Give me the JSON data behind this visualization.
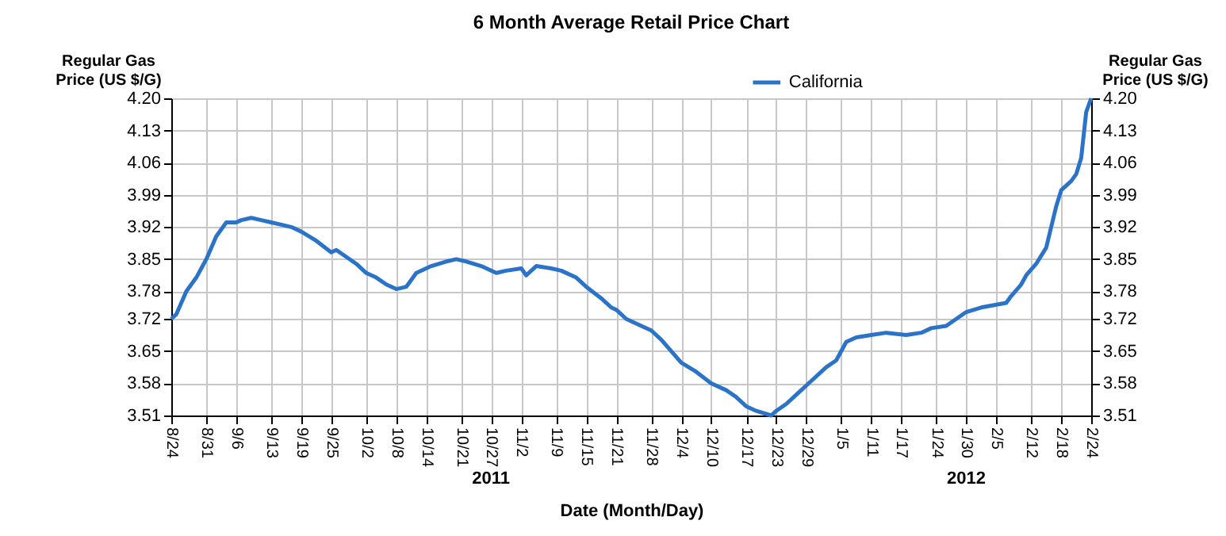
{
  "chart_data": {
    "type": "line",
    "title": "6 Month Average Retail Price Chart",
    "xlabel": "Date (Month/Day)",
    "ylabel": "Regular Gas Price (US $/G)",
    "y2label": "Regular Gas Price (US $/G)",
    "x": [
      "2011-08-24",
      "2011-08-25",
      "2011-08-27",
      "2011-08-29",
      "2011-08-31",
      "2011-09-02",
      "2011-09-04",
      "2011-09-06",
      "2011-09-07",
      "2011-09-09",
      "2011-09-11",
      "2011-09-13",
      "2011-09-15",
      "2011-09-17",
      "2011-09-19",
      "2011-09-22",
      "2011-09-25",
      "2011-09-26",
      "2011-09-28",
      "2011-09-30",
      "2011-10-02",
      "2011-10-04",
      "2011-10-06",
      "2011-10-08",
      "2011-10-10",
      "2011-10-11",
      "2011-10-12",
      "2011-10-15",
      "2011-10-18",
      "2011-10-20",
      "2011-10-22",
      "2011-10-25",
      "2011-10-28",
      "2011-10-30",
      "2011-11-02",
      "2011-11-03",
      "2011-11-05",
      "2011-11-08",
      "2011-11-10",
      "2011-11-13",
      "2011-11-15",
      "2011-11-18",
      "2011-11-20",
      "2011-11-21",
      "2011-11-23",
      "2011-11-26",
      "2011-11-28",
      "2011-11-30",
      "2011-12-02",
      "2011-12-04",
      "2011-12-07",
      "2011-12-10",
      "2011-12-13",
      "2011-12-15",
      "2011-12-17",
      "2011-12-19",
      "2011-12-22",
      "2011-12-23",
      "2011-12-25",
      "2011-12-27",
      "2011-12-30",
      "2012-01-02",
      "2012-01-04",
      "2012-01-06",
      "2012-01-08",
      "2012-01-11",
      "2012-01-14",
      "2012-01-18",
      "2012-01-21",
      "2012-01-23",
      "2012-01-26",
      "2012-01-28",
      "2012-01-30",
      "2012-02-02",
      "2012-02-07",
      "2012-02-08",
      "2012-02-10",
      "2012-02-11",
      "2012-02-13",
      "2012-02-15",
      "2012-02-17",
      "2012-02-18",
      "2012-02-20",
      "2012-02-21",
      "2012-02-22",
      "2012-02-23",
      "2012-02-24"
    ],
    "series": [
      {
        "name": "California",
        "color": "#2a73c8",
        "values": [
          3.72,
          3.73,
          3.78,
          3.81,
          3.85,
          3.9,
          3.93,
          3.93,
          3.935,
          3.94,
          3.935,
          3.93,
          3.925,
          3.92,
          3.91,
          3.89,
          3.865,
          3.87,
          3.855,
          3.84,
          3.82,
          3.81,
          3.795,
          3.785,
          3.79,
          3.805,
          3.82,
          3.835,
          3.845,
          3.85,
          3.845,
          3.835,
          3.82,
          3.825,
          3.83,
          3.815,
          3.835,
          3.83,
          3.825,
          3.81,
          3.79,
          3.765,
          3.745,
          3.74,
          3.72,
          3.705,
          3.695,
          3.675,
          3.65,
          3.625,
          3.605,
          3.58,
          3.565,
          3.55,
          3.53,
          3.52,
          3.51,
          3.52,
          3.535,
          3.555,
          3.585,
          3.615,
          3.63,
          3.67,
          3.68,
          3.685,
          3.69,
          3.685,
          3.69,
          3.7,
          3.705,
          3.72,
          3.735,
          3.745,
          3.755,
          3.77,
          3.795,
          3.815,
          3.84,
          3.875,
          3.965,
          4.0,
          4.02,
          4.035,
          4.07,
          4.17,
          4.2
        ]
      }
    ],
    "xlim": [
      "2011-08-24",
      "2012-02-24"
    ],
    "xticks": [
      {
        "value": "2011-08-24",
        "label": "8/24"
      },
      {
        "value": "2011-08-31",
        "label": "8/31"
      },
      {
        "value": "2011-09-06",
        "label": "9/6"
      },
      {
        "value": "2011-09-13",
        "label": "9/13"
      },
      {
        "value": "2011-09-19",
        "label": "9/19"
      },
      {
        "value": "2011-09-25",
        "label": "9/25"
      },
      {
        "value": "2011-10-02",
        "label": "10/2"
      },
      {
        "value": "2011-10-08",
        "label": "10/8"
      },
      {
        "value": "2011-10-14",
        "label": "10/14"
      },
      {
        "value": "2011-10-21",
        "label": "10/21"
      },
      {
        "value": "2011-10-27",
        "label": "10/27"
      },
      {
        "value": "2011-11-02",
        "label": "11/2"
      },
      {
        "value": "2011-11-09",
        "label": "11/9"
      },
      {
        "value": "2011-11-15",
        "label": "11/15"
      },
      {
        "value": "2011-11-21",
        "label": "11/21"
      },
      {
        "value": "2011-11-28",
        "label": "11/28"
      },
      {
        "value": "2011-12-04",
        "label": "12/4"
      },
      {
        "value": "2011-12-10",
        "label": "12/10"
      },
      {
        "value": "2011-12-17",
        "label": "12/17"
      },
      {
        "value": "2011-12-23",
        "label": "12/23"
      },
      {
        "value": "2011-12-29",
        "label": "12/29"
      },
      {
        "value": "2012-01-05",
        "label": "1/5"
      },
      {
        "value": "2012-01-11",
        "label": "1/11"
      },
      {
        "value": "2012-01-17",
        "label": "1/17"
      },
      {
        "value": "2012-01-24",
        "label": "1/24"
      },
      {
        "value": "2012-01-30",
        "label": "1/30"
      },
      {
        "value": "2012-02-05",
        "label": "2/5"
      },
      {
        "value": "2012-02-12",
        "label": "2/12"
      },
      {
        "value": "2012-02-18",
        "label": "2/18"
      },
      {
        "value": "2012-02-24",
        "label": "2/24"
      }
    ],
    "ylim": [
      3.51,
      4.2
    ],
    "yticks": [
      3.51,
      3.58,
      3.65,
      3.72,
      3.78,
      3.85,
      3.92,
      3.99,
      4.06,
      4.13,
      {
        "value": 4.2,
        "label": "4.20"
      }
    ],
    "y2lim": [
      3.51,
      4.2
    ],
    "y2ticks": [
      3.51,
      3.58,
      3.65,
      3.72,
      3.78,
      3.85,
      3.92,
      3.99,
      4.06,
      4.13,
      {
        "value": 4.2,
        "label": "4.20"
      }
    ],
    "annotations": [
      "2011",
      "2012"
    ],
    "grid": true,
    "legend": "top",
    "marker": "none",
    "line_style": "solid"
  }
}
